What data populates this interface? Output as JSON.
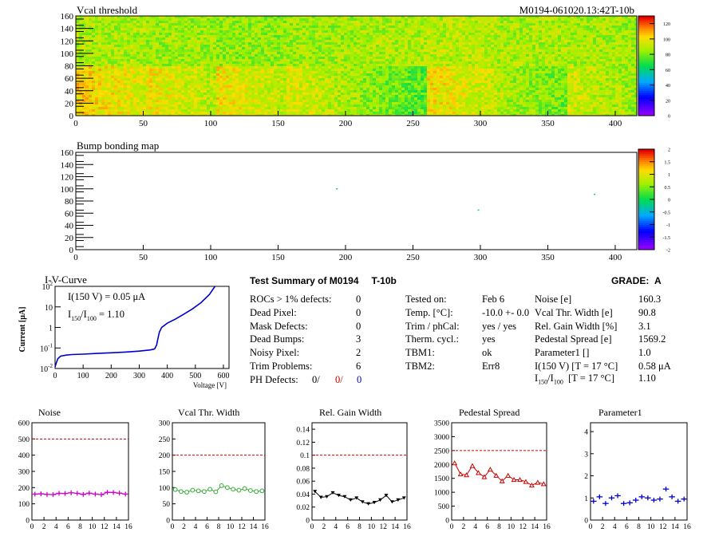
{
  "module_id": "M0194-061020.13:42T-10b",
  "chart_data": [
    {
      "type": "heatmap",
      "title": "Vcal threshold",
      "xlim": [
        0,
        416
      ],
      "ylim": [
        0,
        160
      ],
      "x_ticks": [
        "0",
        "50",
        "100",
        "150",
        "200",
        "250",
        "300",
        "350",
        "400"
      ],
      "y_ticks": [
        "0",
        "20",
        "40",
        "60",
        "80",
        "100",
        "120",
        "140",
        "160"
      ],
      "colorbar_ticks": [
        "0",
        "20",
        "40",
        "60",
        "80",
        "100",
        "120"
      ],
      "colorbar_range": [
        0,
        130
      ],
      "roc_grid": {
        "columns": 8,
        "rows": 2,
        "roc_width": 52,
        "roc_height": 80
      },
      "roc_mean_threshold": {
        "top_row": [
          88,
          86,
          84,
          86,
          88,
          90,
          88,
          87
        ],
        "bottom_row": [
          100,
          95,
          96,
          92,
          80,
          97,
          84,
          90
        ]
      }
    },
    {
      "type": "heatmap",
      "title": "Bump bonding map",
      "xlim": [
        0,
        416
      ],
      "ylim": [
        0,
        160
      ],
      "x_ticks": [
        "0",
        "50",
        "100",
        "150",
        "200",
        "250",
        "300",
        "350",
        "400"
      ],
      "y_ticks": [
        "0",
        "20",
        "40",
        "60",
        "80",
        "100",
        "120",
        "140",
        "160"
      ],
      "colorbar_ticks": [
        "-2",
        "-1.5",
        "-1",
        "-0.5",
        "0",
        "0.5",
        "1",
        "1.5",
        "2"
      ],
      "colorbar_range": [
        -2,
        2
      ],
      "points": [
        {
          "x": 193,
          "y": 101,
          "value": 0
        },
        {
          "x": 298,
          "y": 66,
          "value": 0
        },
        {
          "x": 384,
          "y": 92,
          "value": 0
        }
      ]
    },
    {
      "type": "line",
      "title": "I-V-Curve",
      "xlabel": "Voltage [V]",
      "ylabel": "Current [μA]",
      "xlim": [
        0,
        620
      ],
      "ylim": [
        0.01,
        100
      ],
      "yscale": "log",
      "x_ticks": [
        "0",
        "100",
        "200",
        "300",
        "400",
        "500",
        "600"
      ],
      "y_ticks": [
        "10-2",
        "10-1",
        "1",
        "10",
        "102"
      ],
      "annotation_1": "I(150 V) = 0.05 μA",
      "annotation_2_prefix": "I",
      "annotation_2_sub1": "150",
      "annotation_2_mid": "/I",
      "annotation_2_sub2": "100",
      "annotation_2_value": "=  1.10",
      "series": [
        {
          "x": [
            0,
            5,
            10,
            20,
            40,
            60,
            100,
            150,
            200,
            250,
            300,
            340,
            355,
            362,
            367,
            372,
            380,
            400,
            430,
            460,
            490,
            520,
            550,
            570
          ],
          "y": [
            0.012,
            0.02,
            0.03,
            0.04,
            0.045,
            0.048,
            0.05,
            0.054,
            0.058,
            0.063,
            0.07,
            0.08,
            0.09,
            0.14,
            0.3,
            0.6,
            1.0,
            1.6,
            2.6,
            4.5,
            8,
            16,
            40,
            100
          ]
        }
      ]
    },
    {
      "type": "line",
      "title": "Noise",
      "x": [
        0,
        1,
        2,
        3,
        4,
        5,
        6,
        7,
        8,
        9,
        10,
        11,
        12,
        13,
        14,
        15
      ],
      "values": [
        160,
        162,
        158,
        157,
        165,
        164,
        168,
        165,
        158,
        166,
        160,
        157,
        171,
        170,
        166,
        160
      ],
      "ylim": [
        0,
        600
      ],
      "xlim": [
        0,
        16
      ],
      "threshold": 500,
      "y_ticks": [
        "0",
        "100",
        "200",
        "300",
        "400",
        "500",
        "600"
      ],
      "x_ticks": [
        "0",
        "2",
        "4",
        "6",
        "8",
        "10",
        "12",
        "14",
        "16"
      ],
      "color": "#cc00cc",
      "marker": "cross"
    },
    {
      "type": "line",
      "title": "Vcal Thr. Width",
      "x": [
        0,
        1,
        2,
        3,
        4,
        5,
        6,
        7,
        8,
        9,
        10,
        11,
        12,
        13,
        14,
        15
      ],
      "values": [
        94,
        88,
        86,
        92,
        90,
        88,
        95,
        87,
        106,
        100,
        95,
        92,
        97,
        91,
        88,
        90
      ],
      "ylim": [
        0,
        300
      ],
      "xlim": [
        0,
        16
      ],
      "threshold": 200,
      "y_ticks": [
        "0",
        "50",
        "100",
        "150",
        "200",
        "250",
        "300"
      ],
      "x_ticks": [
        "0",
        "2",
        "4",
        "6",
        "8",
        "10",
        "12",
        "14",
        "16"
      ],
      "color": "#33aa33",
      "marker": "circle"
    },
    {
      "type": "line",
      "title": "Rel. Gain Width",
      "x": [
        0,
        1,
        2,
        3,
        4,
        5,
        6,
        7,
        8,
        9,
        10,
        11,
        12,
        13,
        14,
        15
      ],
      "values": [
        0.044,
        0.035,
        0.036,
        0.042,
        0.038,
        0.036,
        0.031,
        0.034,
        0.028,
        0.025,
        0.027,
        0.031,
        0.038,
        0.028,
        0.031,
        0.034
      ],
      "ylim": [
        0,
        0.15
      ],
      "xlim": [
        0,
        16
      ],
      "threshold": 0.1,
      "y_ticks": [
        "0",
        "0.02",
        "0.04",
        "0.06",
        "0.08",
        "0.1",
        "0.12",
        "0.14"
      ],
      "x_ticks": [
        "0",
        "2",
        "4",
        "6",
        "8",
        "10",
        "12",
        "14",
        "16"
      ],
      "color": "#000000",
      "marker": "triangle-down"
    },
    {
      "type": "line",
      "title": "Pedestal Spread",
      "x": [
        0,
        1,
        2,
        3,
        4,
        5,
        6,
        7,
        8,
        9,
        10,
        11,
        12,
        13,
        14,
        15
      ],
      "values": [
        2050,
        1650,
        1620,
        1950,
        1700,
        1550,
        1820,
        1600,
        1400,
        1600,
        1450,
        1450,
        1380,
        1250,
        1350,
        1300
      ],
      "ylim": [
        0,
        3500
      ],
      "xlim": [
        0,
        16
      ],
      "threshold": 2500,
      "y_ticks": [
        "0",
        "500",
        "1000",
        "1500",
        "2000",
        "2500",
        "3000",
        "3500"
      ],
      "x_ticks": [
        "0",
        "2",
        "4",
        "6",
        "8",
        "10",
        "12",
        "14",
        "16"
      ],
      "color": "#cc0000",
      "marker": "triangle-up"
    },
    {
      "type": "scatter",
      "title": "Parameter1",
      "x": [
        0,
        1,
        2,
        3,
        4,
        5,
        6,
        7,
        8,
        9,
        10,
        11,
        12,
        13,
        14,
        15
      ],
      "values": [
        0.85,
        1.05,
        0.75,
        1.0,
        1.1,
        0.75,
        0.78,
        0.9,
        1.05,
        1.0,
        0.9,
        0.95,
        1.4,
        1.05,
        0.85,
        0.95
      ],
      "ylim": [
        0,
        4.4
      ],
      "xlim": [
        0,
        16
      ],
      "y_ticks": [
        "0",
        "1",
        "2",
        "3",
        "4"
      ],
      "x_ticks": [
        "0",
        "2",
        "4",
        "6",
        "8",
        "10",
        "12",
        "14",
        "16"
      ],
      "color": "#0000cc",
      "marker": "cross"
    }
  ],
  "summary": {
    "title": "Test Summary of M0194",
    "tag": "T-10b",
    "grade_label": "GRADE:",
    "grade": "A",
    "defects": [
      {
        "label": "ROCs > 1% defects:",
        "value": "0"
      },
      {
        "label": "Dead Pixel:",
        "value": "0"
      },
      {
        "label": "Mask Defects:",
        "value": "0"
      },
      {
        "label": "Dead Bumps:",
        "value": "3"
      },
      {
        "label": "Noisy Pixel:",
        "value": "2"
      },
      {
        "label": "Trim Problems:",
        "value": "6"
      }
    ],
    "ph_defects": {
      "label": "PH Defects:",
      "v1": "0/",
      "v2": "0/",
      "v3": "0",
      "c2": "#cc0000",
      "c3": "#0000cc"
    },
    "conditions": [
      {
        "label": "Tested on:",
        "value": "Feb 6"
      },
      {
        "label": "Temp. [°C]:",
        "value": "-10.0 +- 0.0"
      },
      {
        "label": "Trim / phCal:",
        "value": "yes / yes"
      },
      {
        "label": "Therm. cycl.:",
        "value": "yes"
      },
      {
        "label": "TBM1:",
        "value": "ok"
      },
      {
        "label": "TBM2:",
        "value": "Err8"
      }
    ],
    "results": [
      {
        "label": "Noise [e]",
        "value": "160.3"
      },
      {
        "label": "Vcal Thr. Width [e]",
        "value": "90.8"
      },
      {
        "label": "Rel. Gain Width [%]",
        "value": "3.1"
      },
      {
        "label": "Pedestal Spread [e]",
        "value": "1569.2"
      },
      {
        "label": "Parameter1 []",
        "value": "1.0"
      },
      {
        "label": "I(150 V) [T = 17 °C]",
        "value": "0.58 μA"
      }
    ],
    "ratio_label": {
      "a": "I",
      "s1": "150",
      "b": "/I",
      "s2": "100",
      "c": "[T = 17 °C]"
    },
    "ratio_value": "1.10"
  }
}
